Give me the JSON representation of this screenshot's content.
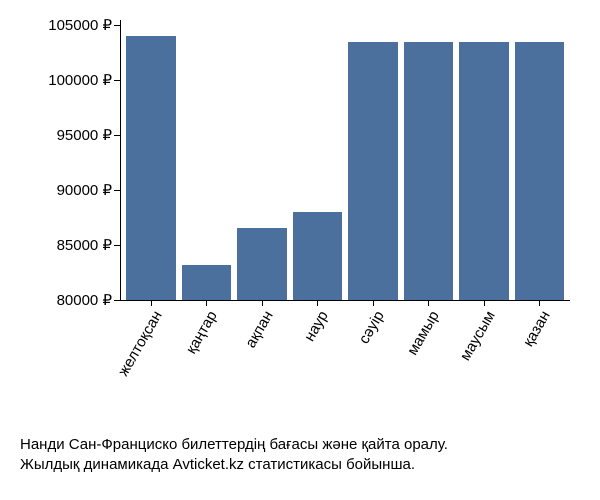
{
  "chart": {
    "type": "bar",
    "bar_color": "#4b709e",
    "background_color": "#ffffff",
    "axis_color": "#000000",
    "label_color": "#000000",
    "label_fontsize": 15,
    "x_label_rotation_deg": -60,
    "categories": [
      "желтоқсан",
      "қаңтар",
      "ақпан",
      "наур",
      "сәуір",
      "мамыр",
      "маусым",
      "қазан"
    ],
    "values": [
      104000,
      83200,
      86600,
      88000,
      103500,
      103500,
      103500,
      103500
    ],
    "ylim": [
      80000,
      105500
    ],
    "y_ticks": [
      80000,
      85000,
      90000,
      95000,
      100000,
      105000
    ],
    "y_tick_labels": [
      "80000 ₽",
      "85000 ₽",
      "90000 ₽",
      "95000 ₽",
      "100000 ₽",
      "105000 ₽"
    ]
  },
  "caption": {
    "line1": "Нанди Сан-Франциско билеттердің бағасы және қайта оралу.",
    "line2": "Жылдық динамикада Avticket.kz статистикасы бойынша."
  }
}
